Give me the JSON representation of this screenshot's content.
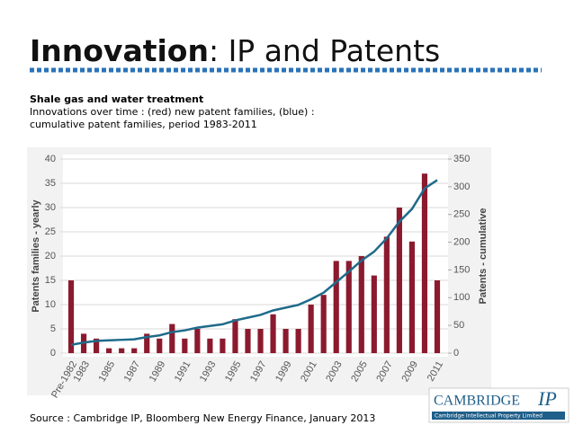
{
  "slide": {
    "title_bold": "Innovation",
    "title_rest": ": IP and Patents",
    "subtitle": "Shale gas and water treatment",
    "description_1": "Innovations over time : (red) new patent families, (blue) :",
    "description_2": "cumulative patent families, period 1983-2011",
    "source": "Source : Cambridge IP, Bloomberg New Energy Finance, January 2013",
    "logo_name": "CAMBRIDGE",
    "logo_ip": "IP",
    "logo_tagline": "Cambridge Intellectual Property Limited"
  },
  "chart_data": {
    "type": "bar_line",
    "categories": [
      "Pre-1982",
      "1983",
      null,
      "1985",
      null,
      "1987",
      null,
      "1989",
      null,
      "1991",
      null,
      "1993",
      null,
      "1995",
      null,
      "1997",
      null,
      "1999",
      null,
      "2001",
      null,
      "2003",
      null,
      "2005",
      null,
      "2007",
      null,
      "2009",
      null,
      "2011"
    ],
    "series": [
      {
        "name": "Patents families - yearly",
        "color": "#8b1a2e",
        "values": [
          15,
          4,
          3,
          1,
          1,
          1,
          4,
          3,
          6,
          3,
          5,
          3,
          3,
          7,
          5,
          5,
          8,
          5,
          5,
          10,
          12,
          19,
          19,
          20,
          16,
          24,
          30,
          23,
          37,
          15
        ]
      },
      {
        "name": "Patents - cumulative",
        "color": "#1f6b8a",
        "axis": "y2",
        "values": [
          15,
          19,
          22,
          23,
          24,
          25,
          29,
          32,
          38,
          41,
          46,
          49,
          52,
          59,
          64,
          69,
          77,
          82,
          87,
          97,
          109,
          128,
          147,
          167,
          183,
          207,
          237,
          260,
          297,
          312
        ]
      }
    ],
    "ylim": [
      0,
      40
    ],
    "yticks": [
      0,
      5,
      10,
      15,
      20,
      25,
      30,
      35,
      40
    ],
    "y2lim": [
      0,
      350
    ],
    "y2ticks": [
      0,
      50,
      100,
      150,
      200,
      250,
      300,
      350
    ],
    "grid": true
  }
}
